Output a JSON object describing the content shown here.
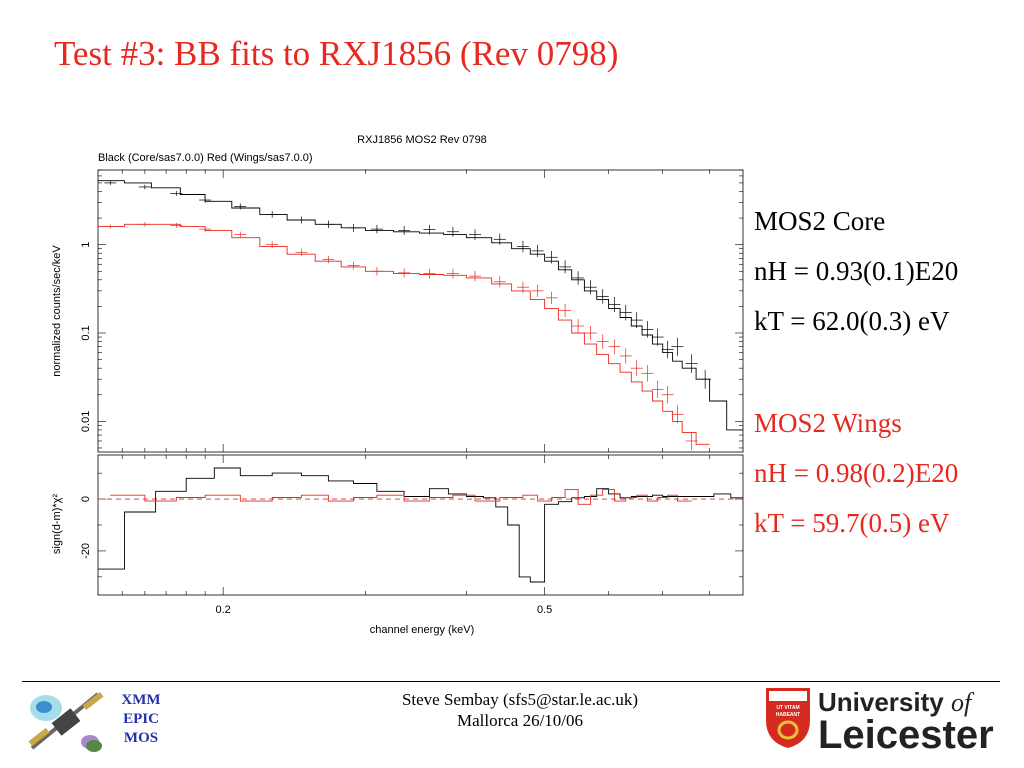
{
  "slide": {
    "title": "Test #3: BB fits to RXJ1856 (Rev 0798)"
  },
  "params": {
    "core": {
      "name": "MOS2 Core",
      "nh": "nH = 0.93(0.1)E20",
      "kt": "kT = 62.0(0.3) eV"
    },
    "wings": {
      "name": "MOS2 Wings",
      "nh": "nH = 0.98(0.2)E20",
      "kt": "kT = 59.7(0.5) eV"
    }
  },
  "footer": {
    "author": "Steve Sembay (sfs5@star.le.ac.uk)",
    "venue": "Mallorca 26/10/06",
    "xmm_lines": [
      "XMM",
      "EPIC",
      "MOS"
    ],
    "university_line1": "University",
    "university_of": "of",
    "university_line2": "Leicester",
    "shield_text": [
      "UT VITAM",
      "HABEANT"
    ]
  },
  "colors": {
    "title": "#e8281e",
    "core": "#000000",
    "wings": "#e8281e",
    "xmm_text": "#2233aa",
    "shield": "#d62a20"
  },
  "chart_data": {
    "type": "line",
    "title": "RXJ1856  MOS2  Rev 0798",
    "subtitle": "Black (Core/sas7.0.0)  Red (Wings/sas7.0.0)",
    "xlabel": "channel energy (keV)",
    "xscale": "log",
    "xlim": [
      0.14,
      0.88
    ],
    "xticks": [
      {
        "v": 0.2,
        "label": "0.2"
      },
      {
        "v": 0.5,
        "label": "0.5"
      }
    ],
    "top_panel": {
      "ylabel": "normalized counts/sec/keV",
      "yscale": "log",
      "ylim": [
        0.0045,
        7
      ],
      "yticks": [
        {
          "v": 1,
          "label": "1"
        },
        {
          "v": 0.1,
          "label": "0.1"
        },
        {
          "v": 0.01,
          "label": "0.01"
        }
      ]
    },
    "bottom_panel": {
      "ylabel": "sign(d-m)*χ²",
      "ylim": [
        -37,
        17
      ],
      "yticks": [
        {
          "v": 0,
          "label": "0"
        },
        {
          "v": -20,
          "label": "-20"
        }
      ]
    },
    "series": [
      {
        "color": "#000000",
        "model_x": [
          0.14,
          0.151,
          0.163,
          0.177,
          0.19,
          0.205,
          0.222,
          0.24,
          0.26,
          0.28,
          0.3,
          0.325,
          0.35,
          0.375,
          0.4,
          0.43,
          0.455,
          0.48,
          0.5,
          0.52,
          0.54,
          0.56,
          0.58,
          0.6,
          0.62,
          0.64,
          0.66,
          0.68,
          0.7,
          0.72,
          0.74,
          0.77,
          0.8,
          0.84,
          0.88
        ],
        "model_y": [
          5.3,
          5.0,
          4.4,
          3.7,
          3.1,
          2.6,
          2.2,
          1.9,
          1.7,
          1.55,
          1.45,
          1.4,
          1.35,
          1.3,
          1.2,
          1.05,
          0.9,
          0.78,
          0.65,
          0.52,
          0.4,
          0.3,
          0.24,
          0.19,
          0.15,
          0.12,
          0.095,
          0.075,
          0.06,
          0.048,
          0.04,
          0.03,
          0.017,
          0.008,
          0.008
        ],
        "data_x": [
          0.145,
          0.16,
          0.175,
          0.19,
          0.21,
          0.23,
          0.25,
          0.27,
          0.29,
          0.31,
          0.335,
          0.36,
          0.385,
          0.41,
          0.44,
          0.47,
          0.49,
          0.51,
          0.53,
          0.55,
          0.57,
          0.59,
          0.61,
          0.63,
          0.65,
          0.67,
          0.69,
          0.71,
          0.73,
          0.76,
          0.79
        ],
        "data_y": [
          5.0,
          4.5,
          3.8,
          3.2,
          2.7,
          2.2,
          1.9,
          1.7,
          1.55,
          1.5,
          1.45,
          1.48,
          1.4,
          1.3,
          1.15,
          0.95,
          0.85,
          0.72,
          0.56,
          0.42,
          0.33,
          0.26,
          0.21,
          0.17,
          0.14,
          0.11,
          0.09,
          0.065,
          0.07,
          0.045,
          0.03
        ],
        "resid_x": [
          0.14,
          0.151,
          0.165,
          0.18,
          0.195,
          0.21,
          0.23,
          0.25,
          0.27,
          0.29,
          0.31,
          0.335,
          0.36,
          0.38,
          0.4,
          0.42,
          0.435,
          0.45,
          0.465,
          0.48,
          0.5,
          0.52,
          0.54,
          0.56,
          0.58,
          0.6,
          0.62,
          0.64,
          0.66,
          0.68,
          0.7,
          0.72,
          0.75,
          0.78,
          0.81,
          0.85,
          0.88
        ],
        "resid_y": [
          -27,
          -5,
          3,
          8,
          12,
          9,
          10,
          9,
          7,
          6,
          3,
          1,
          4,
          2,
          1,
          0.5,
          -3,
          -10,
          -30,
          -32,
          -2,
          -1,
          0.5,
          1,
          4,
          2,
          0.5,
          1,
          1,
          1.5,
          1,
          1,
          1,
          1,
          2,
          0.5,
          0.5
        ]
      },
      {
        "color": "#e8281e",
        "model_x": [
          0.14,
          0.151,
          0.163,
          0.177,
          0.19,
          0.205,
          0.222,
          0.24,
          0.26,
          0.28,
          0.3,
          0.325,
          0.35,
          0.375,
          0.4,
          0.43,
          0.455,
          0.48,
          0.5,
          0.52,
          0.54,
          0.56,
          0.58,
          0.6,
          0.62,
          0.64,
          0.66,
          0.68,
          0.7,
          0.72,
          0.74,
          0.77,
          0.8
        ],
        "model_y": [
          1.6,
          1.7,
          1.7,
          1.6,
          1.45,
          1.2,
          0.95,
          0.78,
          0.65,
          0.56,
          0.5,
          0.47,
          0.46,
          0.45,
          0.42,
          0.36,
          0.3,
          0.24,
          0.19,
          0.14,
          0.1,
          0.075,
          0.057,
          0.045,
          0.036,
          0.028,
          0.022,
          0.017,
          0.013,
          0.01,
          0.0075,
          0.0055,
          0.0055
        ],
        "data_x": [
          0.145,
          0.16,
          0.175,
          0.19,
          0.21,
          0.23,
          0.25,
          0.27,
          0.29,
          0.31,
          0.335,
          0.36,
          0.385,
          0.41,
          0.44,
          0.47,
          0.49,
          0.51,
          0.53,
          0.55,
          0.57,
          0.59,
          0.61,
          0.63,
          0.65,
          0.67,
          0.69,
          0.71,
          0.73,
          0.76
        ],
        "data_y": [
          1.6,
          1.7,
          1.65,
          1.5,
          1.3,
          1.0,
          0.82,
          0.68,
          0.58,
          0.5,
          0.48,
          0.47,
          0.47,
          0.44,
          0.38,
          0.33,
          0.3,
          0.25,
          0.18,
          0.12,
          0.1,
          0.08,
          0.07,
          0.055,
          0.04,
          0.035,
          0.023,
          0.02,
          0.012,
          0.006
        ]
      }
    ]
  }
}
